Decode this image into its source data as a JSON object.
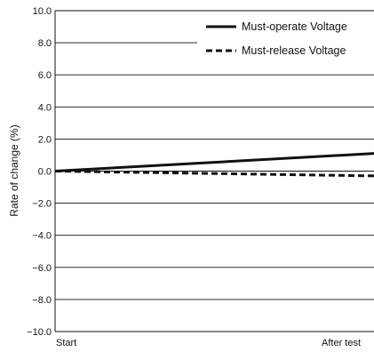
{
  "chart_data": {
    "type": "line",
    "title": "",
    "xlabel": "",
    "ylabel": "Rate of change (%)",
    "categories": [
      "Start",
      "After test"
    ],
    "ylim": [
      -10,
      10
    ],
    "yticks": [
      10,
      8,
      6,
      4,
      2,
      0,
      -2,
      -4,
      -6,
      -8,
      -10
    ],
    "ytick_labels": [
      "10.0",
      "8.0",
      "6.0",
      "4.0",
      "2.0",
      "0.0",
      "−2.0",
      "−4.0",
      "−6.0",
      "−8.0",
      "−10.0"
    ],
    "grid": "horizontal",
    "legend_position": "top-right",
    "series": [
      {
        "name": "Must-operate Voltage",
        "values": [
          0.0,
          1.1
        ],
        "style": "solid",
        "color": "#111111"
      },
      {
        "name": "Must-release Voltage",
        "values": [
          0.0,
          -0.3
        ],
        "style": "dashed",
        "color": "#111111"
      }
    ]
  }
}
